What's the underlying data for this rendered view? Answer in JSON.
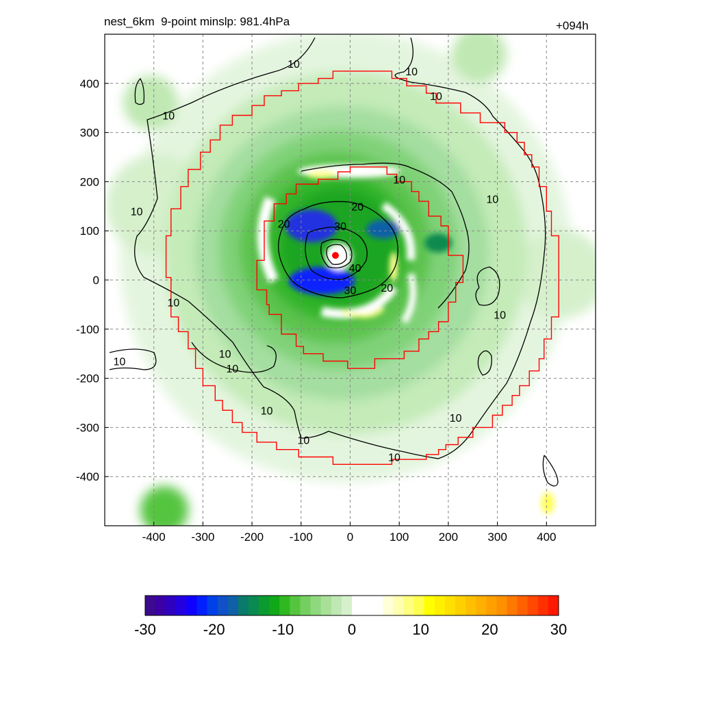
{
  "chart_data": {
    "type": "heatmap",
    "title_left": "nest_6km  9-point minslp: 981.4hPa",
    "title_right": "+094h",
    "xlim": [
      -500,
      500
    ],
    "ylim": [
      -500,
      500
    ],
    "x_ticks": [
      -400,
      -300,
      -200,
      -100,
      0,
      100,
      200,
      300,
      400
    ],
    "y_ticks": [
      -400,
      -300,
      -200,
      -100,
      0,
      100,
      200,
      300,
      400
    ],
    "grid": true,
    "grid_style": "dashed",
    "center_marker": {
      "x": -30,
      "y": 50,
      "color": "#ff0000"
    },
    "contour_levels": [
      10,
      20,
      30,
      40
    ],
    "contour_labels": [
      {
        "text": "10",
        "x": -115,
        "y": 440
      },
      {
        "text": "10",
        "x": -370,
        "y": 335
      },
      {
        "text": "10",
        "x": -435,
        "y": 140
      },
      {
        "text": "10",
        "x": -360,
        "y": -45
      },
      {
        "text": "10",
        "x": -255,
        "y": -150
      },
      {
        "text": "10",
        "x": -470,
        "y": -165
      },
      {
        "text": "10",
        "x": -240,
        "y": -180
      },
      {
        "text": "10",
        "x": -170,
        "y": -265
      },
      {
        "text": "10",
        "x": -95,
        "y": -325
      },
      {
        "text": "10",
        "x": 125,
        "y": 425
      },
      {
        "text": "10",
        "x": 175,
        "y": 375
      },
      {
        "text": "10",
        "x": 100,
        "y": 205
      },
      {
        "text": "10",
        "x": 290,
        "y": 165
      },
      {
        "text": "10",
        "x": 305,
        "y": -70
      },
      {
        "text": "10",
        "x": 215,
        "y": -280
      },
      {
        "text": "10",
        "x": 90,
        "y": -360
      },
      {
        "text": "20",
        "x": -135,
        "y": 115
      },
      {
        "text": "20",
        "x": 15,
        "y": 150
      },
      {
        "text": "20",
        "x": 75,
        "y": -15
      },
      {
        "text": "30",
        "x": -20,
        "y": 110
      },
      {
        "text": "30",
        "x": 0,
        "y": -20
      },
      {
        "text": "40",
        "x": 10,
        "y": 25
      }
    ],
    "boxes": [
      {
        "name": "outer-nest-box",
        "color": "#ff0000",
        "points": [
          [
            -35,
            425
          ],
          [
            85,
            425
          ],
          [
            85,
            410
          ],
          [
            115,
            410
          ],
          [
            115,
            395
          ],
          [
            155,
            395
          ],
          [
            155,
            380
          ],
          [
            175,
            380
          ],
          [
            175,
            360
          ],
          [
            225,
            360
          ],
          [
            225,
            340
          ],
          [
            265,
            340
          ],
          [
            265,
            320
          ],
          [
            315,
            320
          ],
          [
            315,
            300
          ],
          [
            340,
            300
          ],
          [
            340,
            280
          ],
          [
            355,
            280
          ],
          [
            355,
            255
          ],
          [
            370,
            255
          ],
          [
            370,
            230
          ],
          [
            385,
            230
          ],
          [
            385,
            190
          ],
          [
            400,
            190
          ],
          [
            400,
            140
          ],
          [
            410,
            140
          ],
          [
            410,
            90
          ],
          [
            425,
            90
          ],
          [
            425,
            -75
          ],
          [
            410,
            -75
          ],
          [
            410,
            -120
          ],
          [
            395,
            -120
          ],
          [
            395,
            -160
          ],
          [
            385,
            -160
          ],
          [
            385,
            -185
          ],
          [
            365,
            -185
          ],
          [
            365,
            -215
          ],
          [
            345,
            -215
          ],
          [
            345,
            -235
          ],
          [
            330,
            -235
          ],
          [
            330,
            -255
          ],
          [
            310,
            -255
          ],
          [
            310,
            -275
          ],
          [
            290,
            -275
          ],
          [
            290,
            -300
          ],
          [
            250,
            -300
          ],
          [
            250,
            -320
          ],
          [
            220,
            -320
          ],
          [
            220,
            -335
          ],
          [
            195,
            -335
          ],
          [
            195,
            -345
          ],
          [
            180,
            -345
          ],
          [
            180,
            -355
          ],
          [
            155,
            -355
          ],
          [
            155,
            -365
          ],
          [
            85,
            -365
          ],
          [
            85,
            -375
          ],
          [
            -35,
            -375
          ],
          [
            -35,
            -360
          ],
          [
            -105,
            -360
          ],
          [
            -105,
            -345
          ],
          [
            -150,
            -345
          ],
          [
            -150,
            -330
          ],
          [
            -190,
            -330
          ],
          [
            -190,
            -310
          ],
          [
            -220,
            -310
          ],
          [
            -220,
            -290
          ],
          [
            -240,
            -290
          ],
          [
            -240,
            -265
          ],
          [
            -260,
            -265
          ],
          [
            -260,
            -245
          ],
          [
            -275,
            -245
          ],
          [
            -275,
            -215
          ],
          [
            -300,
            -215
          ],
          [
            -300,
            -180
          ],
          [
            -315,
            -180
          ],
          [
            -315,
            -140
          ],
          [
            -330,
            -140
          ],
          [
            -330,
            -105
          ],
          [
            -350,
            -105
          ],
          [
            -350,
            -75
          ],
          [
            -365,
            -75
          ],
          [
            -365,
            5
          ],
          [
            -375,
            5
          ],
          [
            -375,
            90
          ],
          [
            -365,
            90
          ],
          [
            -365,
            145
          ],
          [
            -345,
            145
          ],
          [
            -345,
            190
          ],
          [
            -330,
            190
          ],
          [
            -330,
            225
          ],
          [
            -305,
            225
          ],
          [
            -305,
            260
          ],
          [
            -285,
            260
          ],
          [
            -285,
            285
          ],
          [
            -265,
            285
          ],
          [
            -265,
            315
          ],
          [
            -240,
            315
          ],
          [
            -240,
            335
          ],
          [
            -200,
            335
          ],
          [
            -200,
            355
          ],
          [
            -175,
            355
          ],
          [
            -175,
            375
          ],
          [
            -140,
            375
          ],
          [
            -140,
            385
          ],
          [
            -105,
            385
          ],
          [
            -105,
            400
          ],
          [
            -65,
            400
          ],
          [
            -65,
            410
          ],
          [
            -35,
            410
          ],
          [
            -35,
            425
          ]
        ]
      },
      {
        "name": "inner-nest-box",
        "color": "#ff0000",
        "points": [
          [
            0,
            230
          ],
          [
            75,
            230
          ],
          [
            75,
            215
          ],
          [
            95,
            215
          ],
          [
            95,
            200
          ],
          [
            125,
            200
          ],
          [
            125,
            180
          ],
          [
            140,
            180
          ],
          [
            140,
            160
          ],
          [
            160,
            160
          ],
          [
            160,
            130
          ],
          [
            185,
            130
          ],
          [
            185,
            110
          ],
          [
            200,
            110
          ],
          [
            200,
            50
          ],
          [
            230,
            50
          ],
          [
            230,
            -5
          ],
          [
            215,
            -5
          ],
          [
            215,
            -45
          ],
          [
            200,
            -45
          ],
          [
            200,
            -85
          ],
          [
            180,
            -85
          ],
          [
            180,
            -105
          ],
          [
            160,
            -105
          ],
          [
            160,
            -120
          ],
          [
            140,
            -120
          ],
          [
            140,
            -145
          ],
          [
            110,
            -145
          ],
          [
            110,
            -160
          ],
          [
            50,
            -160
          ],
          [
            50,
            -180
          ],
          [
            -5,
            -180
          ],
          [
            -5,
            -165
          ],
          [
            -55,
            -165
          ],
          [
            -55,
            -150
          ],
          [
            -95,
            -150
          ],
          [
            -95,
            -135
          ],
          [
            -110,
            -135
          ],
          [
            -110,
            -110
          ],
          [
            -140,
            -110
          ],
          [
            -140,
            -70
          ],
          [
            -165,
            -70
          ],
          [
            -165,
            -50
          ],
          [
            -170,
            -50
          ],
          [
            -170,
            -20
          ],
          [
            -190,
            -20
          ],
          [
            -190,
            40
          ],
          [
            -175,
            40
          ],
          [
            -175,
            120
          ],
          [
            -155,
            120
          ],
          [
            -155,
            155
          ],
          [
            -130,
            155
          ],
          [
            -130,
            175
          ],
          [
            -110,
            175
          ],
          [
            -110,
            195
          ],
          [
            -65,
            195
          ],
          [
            -65,
            205
          ],
          [
            -25,
            205
          ],
          [
            -25,
            220
          ],
          [
            0,
            220
          ],
          [
            0,
            230
          ]
        ]
      }
    ],
    "colorbar": {
      "ticks": [
        -30,
        -20,
        -10,
        0,
        10,
        20,
        30
      ],
      "range": [
        -30,
        30
      ],
      "colors": [
        "#3b0a8f",
        "#3a00a5",
        "#2e00c0",
        "#2200e0",
        "#1000ff",
        "#0020ff",
        "#0040e8",
        "#1050c8",
        "#1060a8",
        "#0a7a6a",
        "#0a8a50",
        "#0a9a30",
        "#10a818",
        "#30b820",
        "#55c540",
        "#75cf60",
        "#90d87e",
        "#a8e098",
        "#bfe8b2",
        "#d6f0cc",
        "#ffffff",
        "#ffffff",
        "#ffffff",
        "#ffffd8",
        "#ffffb0",
        "#ffff80",
        "#ffff50",
        "#ffff00",
        "#fff000",
        "#ffe000",
        "#ffd000",
        "#ffc000",
        "#ffb000",
        "#ffa000",
        "#ff9000",
        "#ff7800",
        "#ff6000",
        "#ff4800",
        "#ff3000",
        "#ff1800"
      ]
    }
  }
}
